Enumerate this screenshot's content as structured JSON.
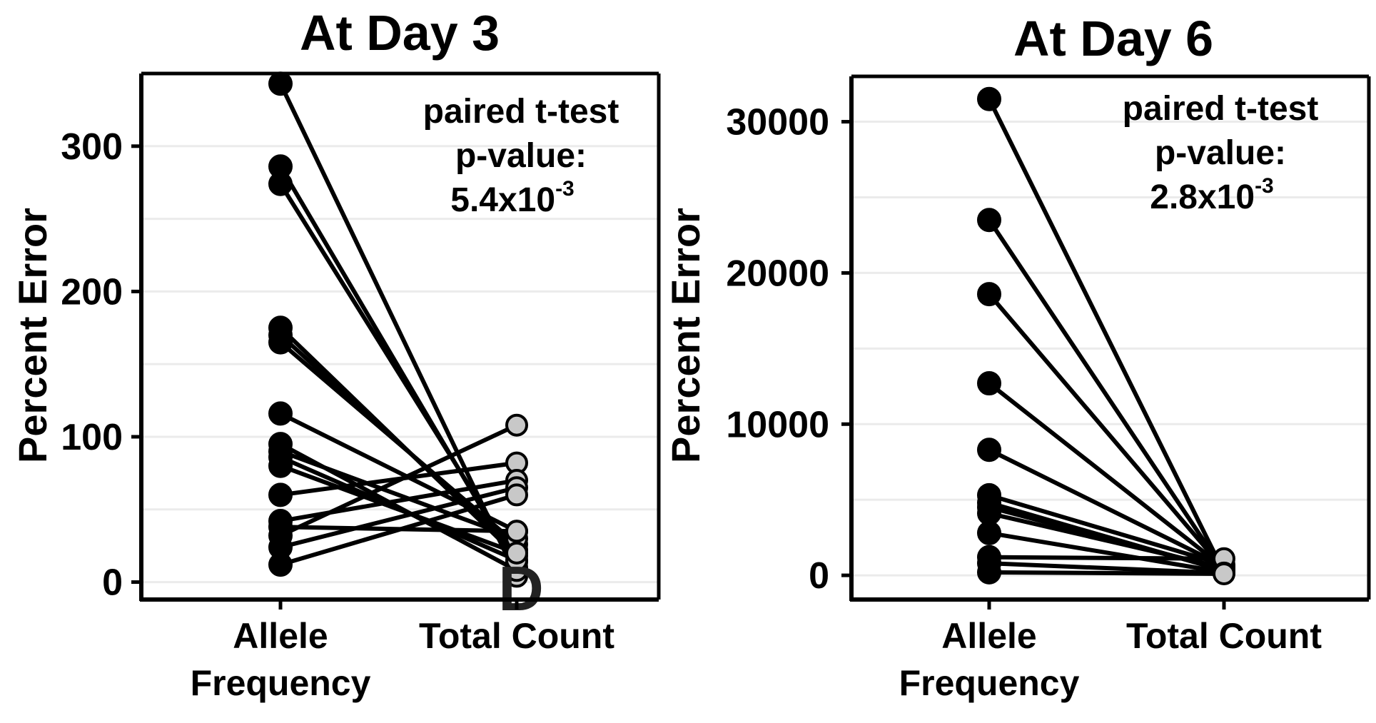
{
  "chart_data": [
    {
      "type": "line",
      "title": "At Day 3",
      "xlabel": "",
      "ylabel": "Percent Error",
      "categories": [
        "Allele\nFrequency",
        "Total Count"
      ],
      "ylim": [
        -12,
        350
      ],
      "yticks": [
        0,
        100,
        200,
        300
      ],
      "grid": true,
      "annotation": {
        "lines": [
          "paired t-test",
          "p-value:"
        ],
        "value_base": "5.4x10",
        "value_exp": "-3"
      },
      "overlay_letter": "D",
      "series": [
        {
          "values": [
            343,
            4
          ]
        },
        {
          "values": [
            286,
            10
          ]
        },
        {
          "values": [
            274,
            14
          ]
        },
        {
          "values": [
            175,
            18
          ]
        },
        {
          "values": [
            170,
            22
          ]
        },
        {
          "values": [
            165,
            26
          ]
        },
        {
          "values": [
            116,
            35
          ]
        },
        {
          "values": [
            95,
            8
          ]
        },
        {
          "values": [
            90,
            30
          ]
        },
        {
          "values": [
            86,
            15
          ]
        },
        {
          "values": [
            80,
            20
          ]
        },
        {
          "values": [
            60,
            82
          ]
        },
        {
          "values": [
            42,
            70
          ]
        },
        {
          "values": [
            38,
            35
          ]
        },
        {
          "values": [
            32,
            108
          ]
        },
        {
          "values": [
            24,
            65
          ]
        },
        {
          "values": [
            12,
            60
          ]
        }
      ]
    },
    {
      "type": "line",
      "title": "At Day 6",
      "xlabel": "",
      "ylabel": "Percent Error",
      "categories": [
        "Allele\nFrequency",
        "Total Count"
      ],
      "ylim": [
        -1600,
        33000
      ],
      "yticks": [
        0,
        10000,
        20000,
        30000
      ],
      "grid": true,
      "annotation": {
        "lines": [
          "paired t-test",
          "p-value:"
        ],
        "value_base": "2.8x10",
        "value_exp": "-3"
      },
      "series": [
        {
          "values": [
            31500,
            200
          ]
        },
        {
          "values": [
            23500,
            300
          ]
        },
        {
          "values": [
            18600,
            400
          ]
        },
        {
          "values": [
            12700,
            500
          ]
        },
        {
          "values": [
            8300,
            600
          ]
        },
        {
          "values": [
            5300,
            700
          ]
        },
        {
          "values": [
            4800,
            300
          ]
        },
        {
          "values": [
            4500,
            400
          ]
        },
        {
          "values": [
            4100,
            500
          ]
        },
        {
          "values": [
            2800,
            200
          ]
        },
        {
          "values": [
            1200,
            1100
          ]
        },
        {
          "values": [
            800,
            150
          ]
        },
        {
          "values": [
            200,
            100
          ]
        }
      ]
    }
  ]
}
